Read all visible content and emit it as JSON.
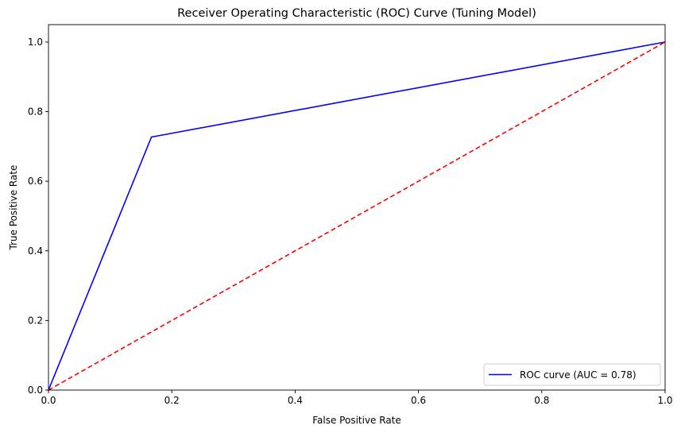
{
  "chart_data": {
    "type": "line",
    "title": "Receiver Operating Characteristic (ROC) Curve (Tuning Model)",
    "xlabel": "False Positive Rate",
    "ylabel": "True Positive Rate",
    "xlim": [
      0.0,
      1.0
    ],
    "ylim": [
      0.0,
      1.05
    ],
    "x_ticks": [
      "0.0",
      "0.2",
      "0.4",
      "0.6",
      "0.8",
      "1.0"
    ],
    "y_ticks": [
      "0.0",
      "0.2",
      "0.4",
      "0.6",
      "0.8",
      "1.0"
    ],
    "grid": false,
    "legend_position": "lower-right",
    "series": [
      {
        "name": "ROC curve (AUC = 0.78)",
        "color": "#0000ff",
        "style": "solid",
        "x": [
          0.0,
          0.167,
          1.0
        ],
        "y": [
          0.0,
          0.727,
          1.0
        ]
      },
      {
        "color": "#ff0000",
        "style": "dashed",
        "x": [
          0.0,
          1.0
        ],
        "y": [
          0.0,
          1.0
        ]
      }
    ]
  }
}
